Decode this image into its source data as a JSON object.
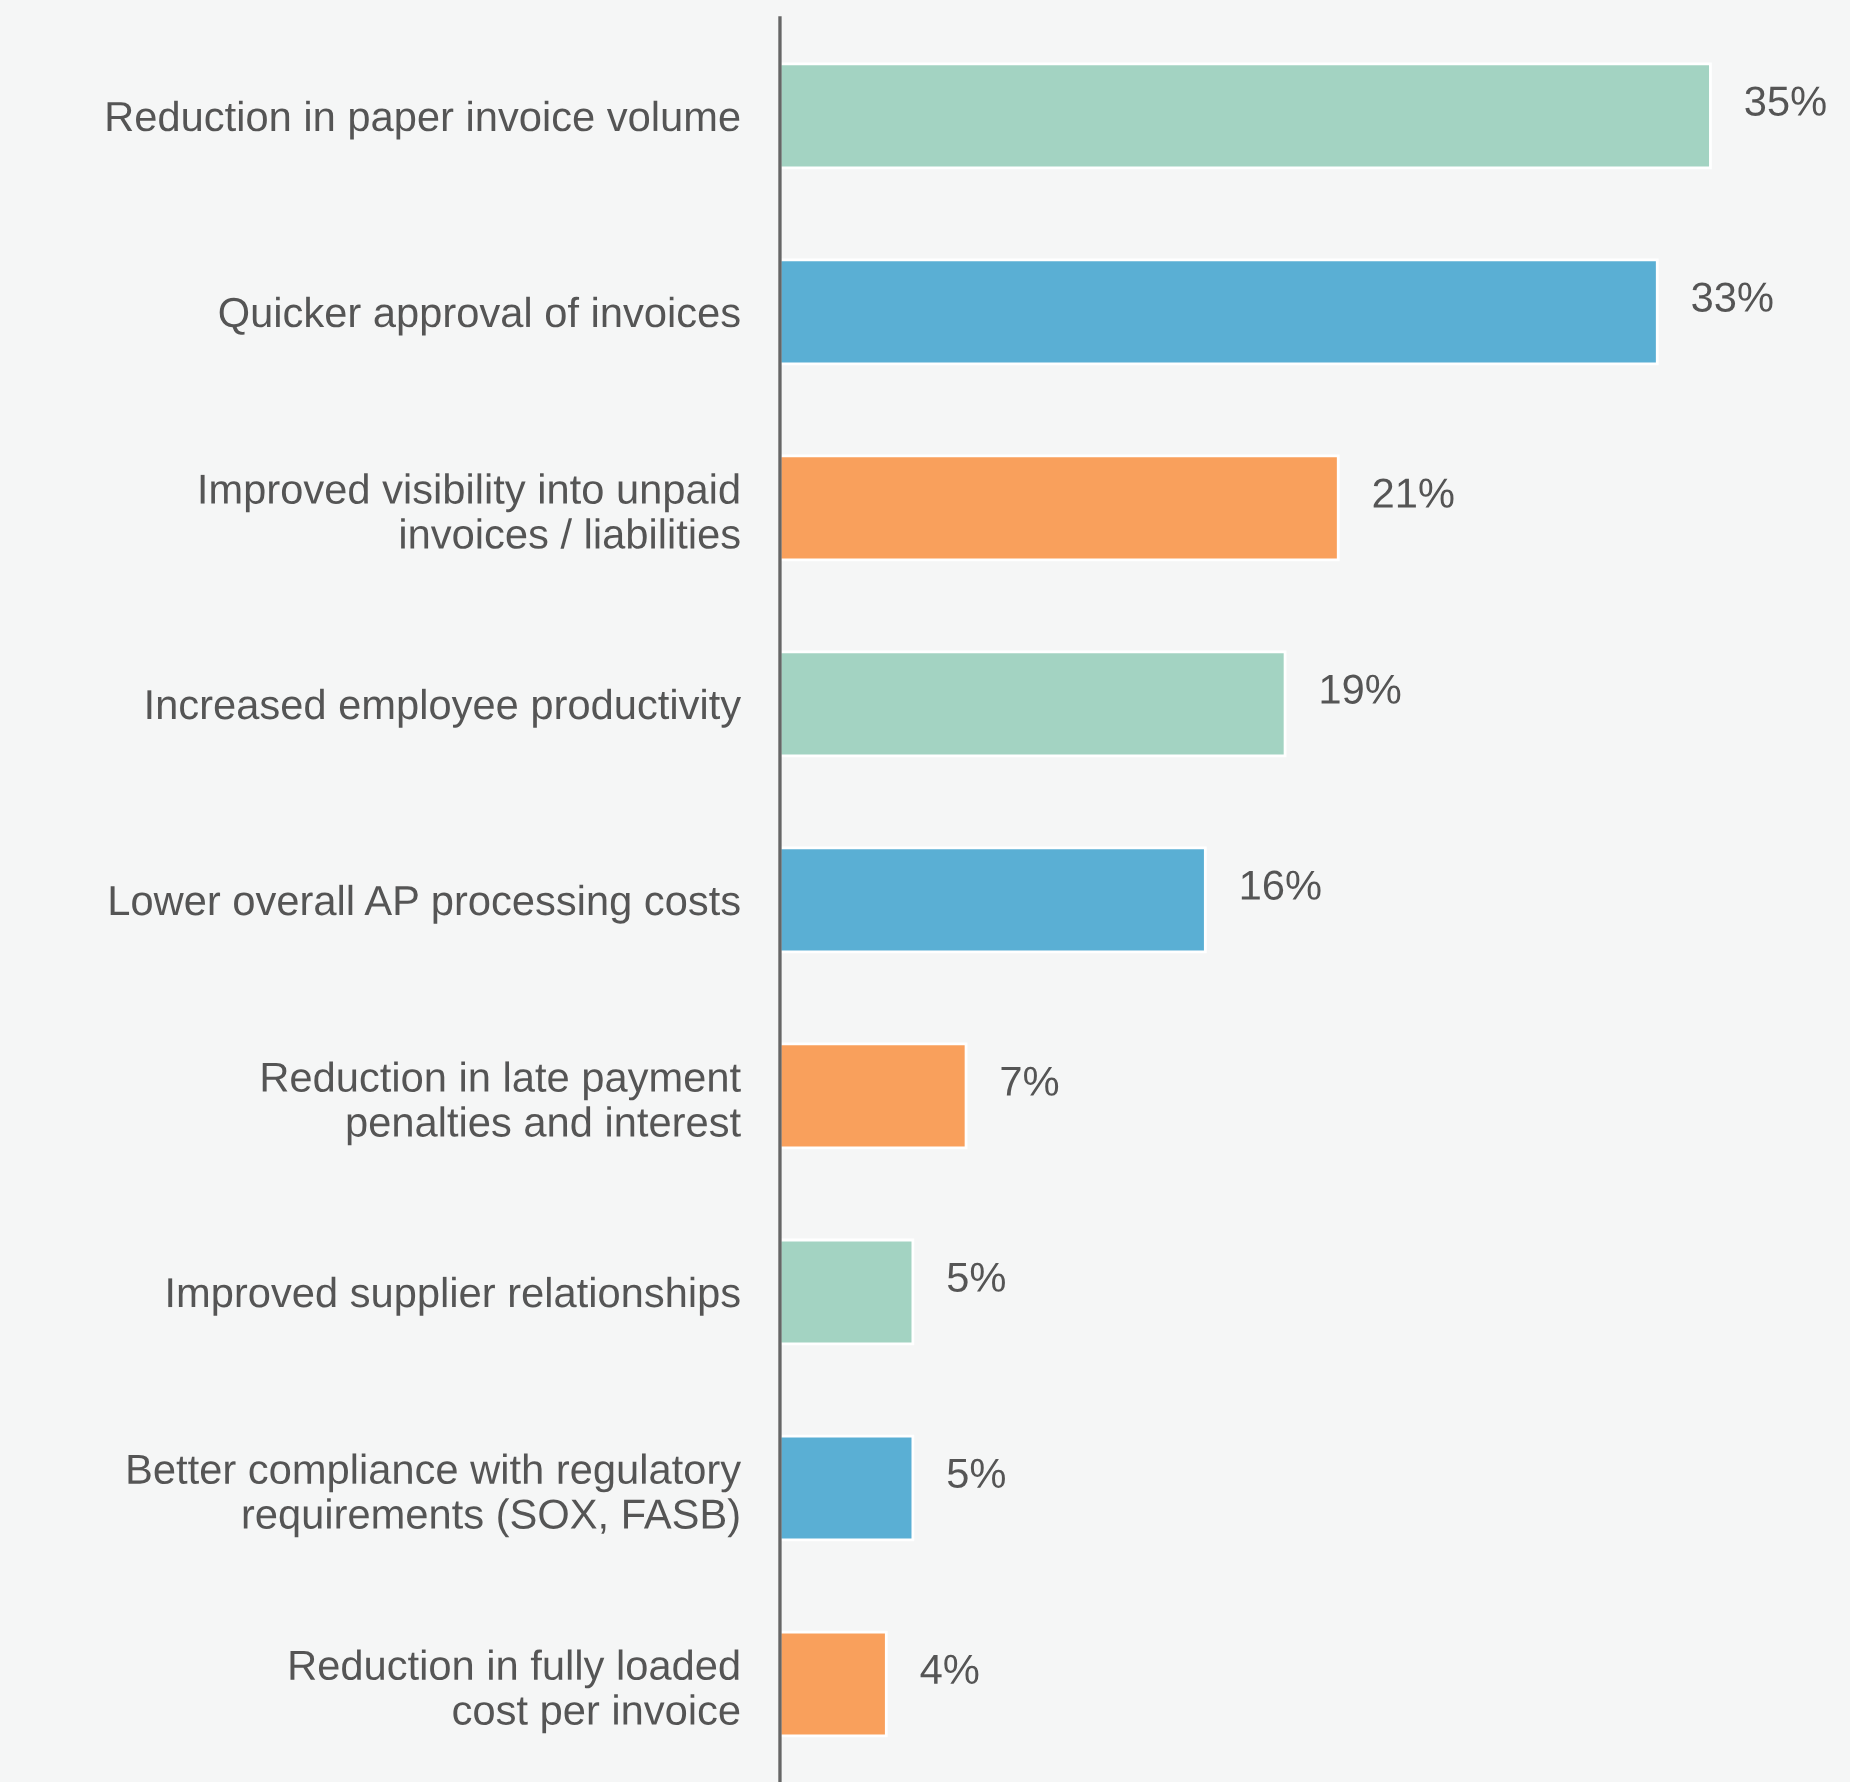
{
  "chart_data": {
    "type": "bar",
    "orientation": "horizontal",
    "categories": [
      "Reduction in paper invoice volume",
      "Quicker approval of invoices",
      "Improved visibility into unpaid\ninvoices / liabilities",
      "Increased employee productivity",
      "Lower overall AP processing costs",
      "Reduction in late payment\npenalties and interest",
      "Improved supplier relationships",
      "Better compliance with regulatory\nrequirements (SOX, FASB)",
      "Reduction in fully loaded\ncost per invoice"
    ],
    "values": [
      35,
      33,
      21,
      19,
      16,
      7,
      5,
      5,
      4
    ],
    "colors": [
      "#a3d3c2",
      "#5aafd4",
      "#f9a05c",
      "#a3d3c2",
      "#5aafd4",
      "#f9a05c",
      "#a3d3c2",
      "#5aafd4",
      "#f9a05c"
    ],
    "value_labels": [
      "35%",
      "33%",
      "21%",
      "19%",
      "16%",
      "7%",
      "5%",
      "5%",
      "4%"
    ],
    "grid": false,
    "legend": false
  }
}
